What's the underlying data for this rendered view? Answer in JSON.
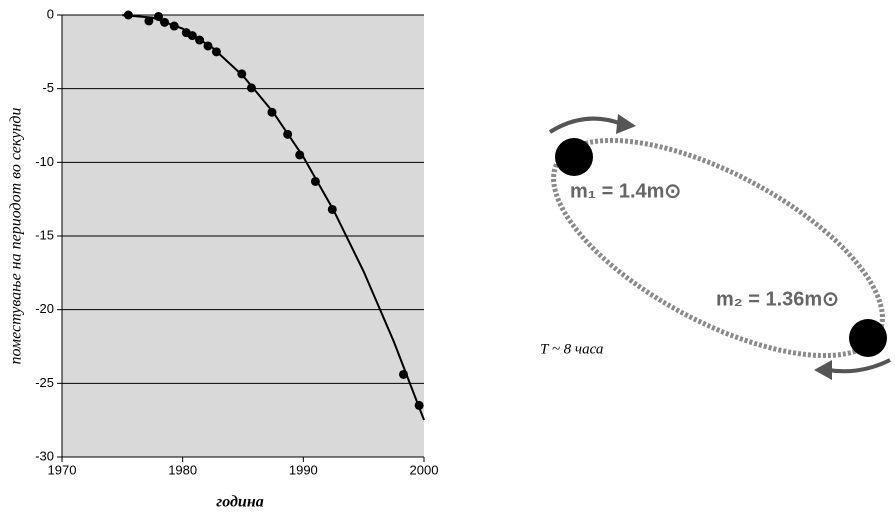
{
  "chart_data": {
    "type": "scatter",
    "xlabel": "година",
    "ylabel": "поместување на периодот во секунди",
    "x": [
      1975.5,
      1977.2,
      1978.0,
      1978.5,
      1979.3,
      1980.3,
      1980.8,
      1981.4,
      1982.1,
      1982.8,
      1984.9,
      1985.7,
      1987.4,
      1988.7,
      1989.7,
      1991.0,
      1992.4,
      1998.3,
      1999.6
    ],
    "values": [
      0,
      -0.4,
      -0.1,
      -0.5,
      -0.75,
      -1.2,
      -1.4,
      -1.7,
      -2.1,
      -2.5,
      -4.0,
      -4.95,
      -6.6,
      -8.1,
      -9.5,
      -11.3,
      -13.2,
      -24.4,
      -26.5
    ],
    "curve": {
      "x": [
        1975,
        1977.5,
        1980,
        1982.5,
        1985,
        1987.5,
        1990,
        1992.5,
        1995,
        1997.5,
        2000
      ],
      "values": [
        -0.01,
        -0.18,
        -0.93,
        -2.24,
        -4.13,
        -6.6,
        -9.63,
        -13.24,
        -17.41,
        -22.17,
        -27.49
      ]
    },
    "color": "#000000",
    "plot_background": "#d9d9d9",
    "grid": true,
    "xlim": [
      1970,
      2000
    ],
    "ylim": [
      -30,
      0
    ],
    "xticks": [
      1970,
      1980,
      1990,
      2000
    ],
    "yticks": [
      0,
      -5,
      -10,
      -15,
      -20,
      -25,
      -30
    ]
  },
  "diagram": {
    "m1_label": "m₁ = 1.4m⊙",
    "m2_label": "m₂ = 1.36m⊙",
    "period_label": "T ~ 8 часа"
  }
}
